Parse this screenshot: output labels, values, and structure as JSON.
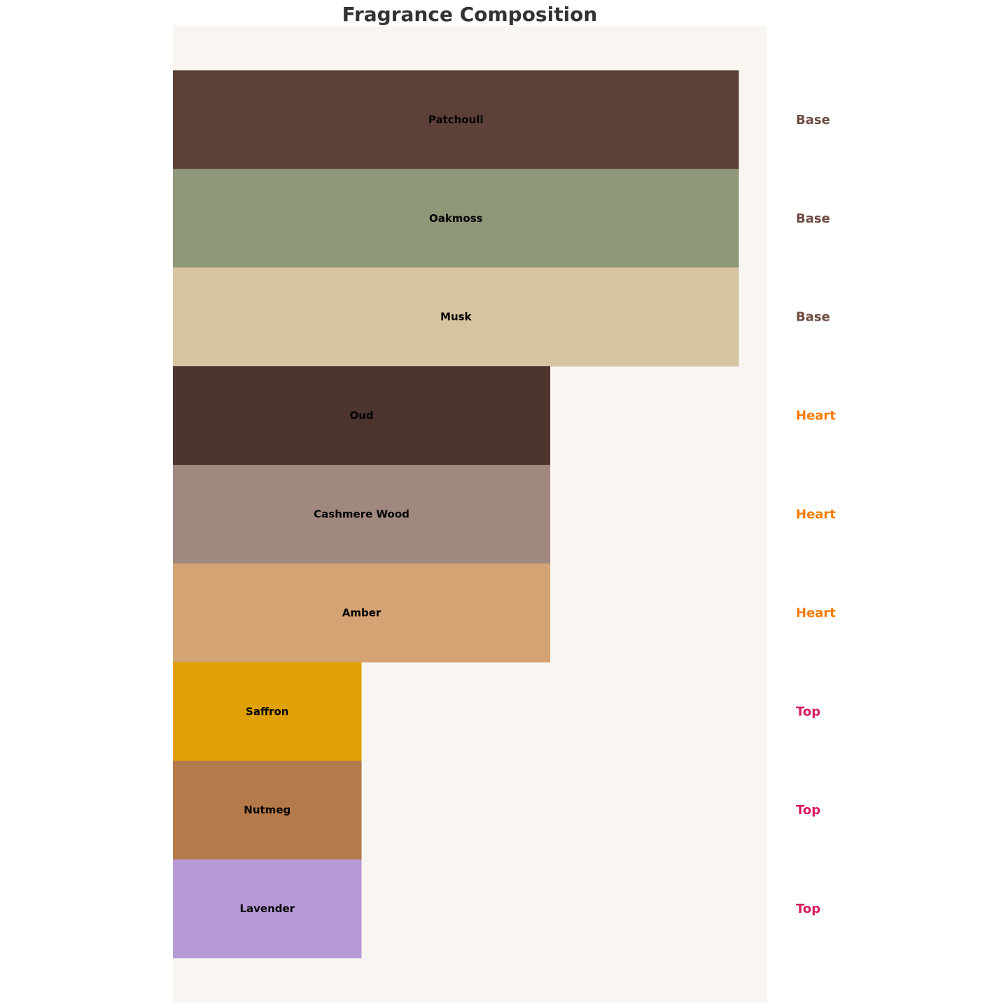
{
  "chart_data": {
    "type": "bar",
    "orientation": "horizontal",
    "title": "Fragrance Composition",
    "xlabel": "",
    "ylabel": "",
    "grid": false,
    "axes_visible": false,
    "xlim": [
      0,
      3.15
    ],
    "background_color": "#F9F6F1",
    "title_color": "#333333",
    "categories": [
      "Patchouli",
      "Oakmoss",
      "Musk",
      "Oud",
      "Cashmere Wood",
      "Amber",
      "Saffron",
      "Nutmeg",
      "Lavender"
    ],
    "values": [
      3,
      3,
      3,
      2,
      2,
      2,
      1,
      1,
      1
    ],
    "colors": [
      "#5D4037",
      "#8F9779",
      "#D7C4A1",
      "#4E342E",
      "#A1887F",
      "#D4A373",
      "#E0A106",
      "#B57A4A",
      "#B799D6"
    ],
    "layers": [
      "Base",
      "Base",
      "Base",
      "Heart",
      "Heart",
      "Heart",
      "Top",
      "Top",
      "Top"
    ],
    "layer_colors": {
      "Base": "#6D4C41",
      "Heart": "#F57C00",
      "Top": "#D81B60"
    }
  }
}
